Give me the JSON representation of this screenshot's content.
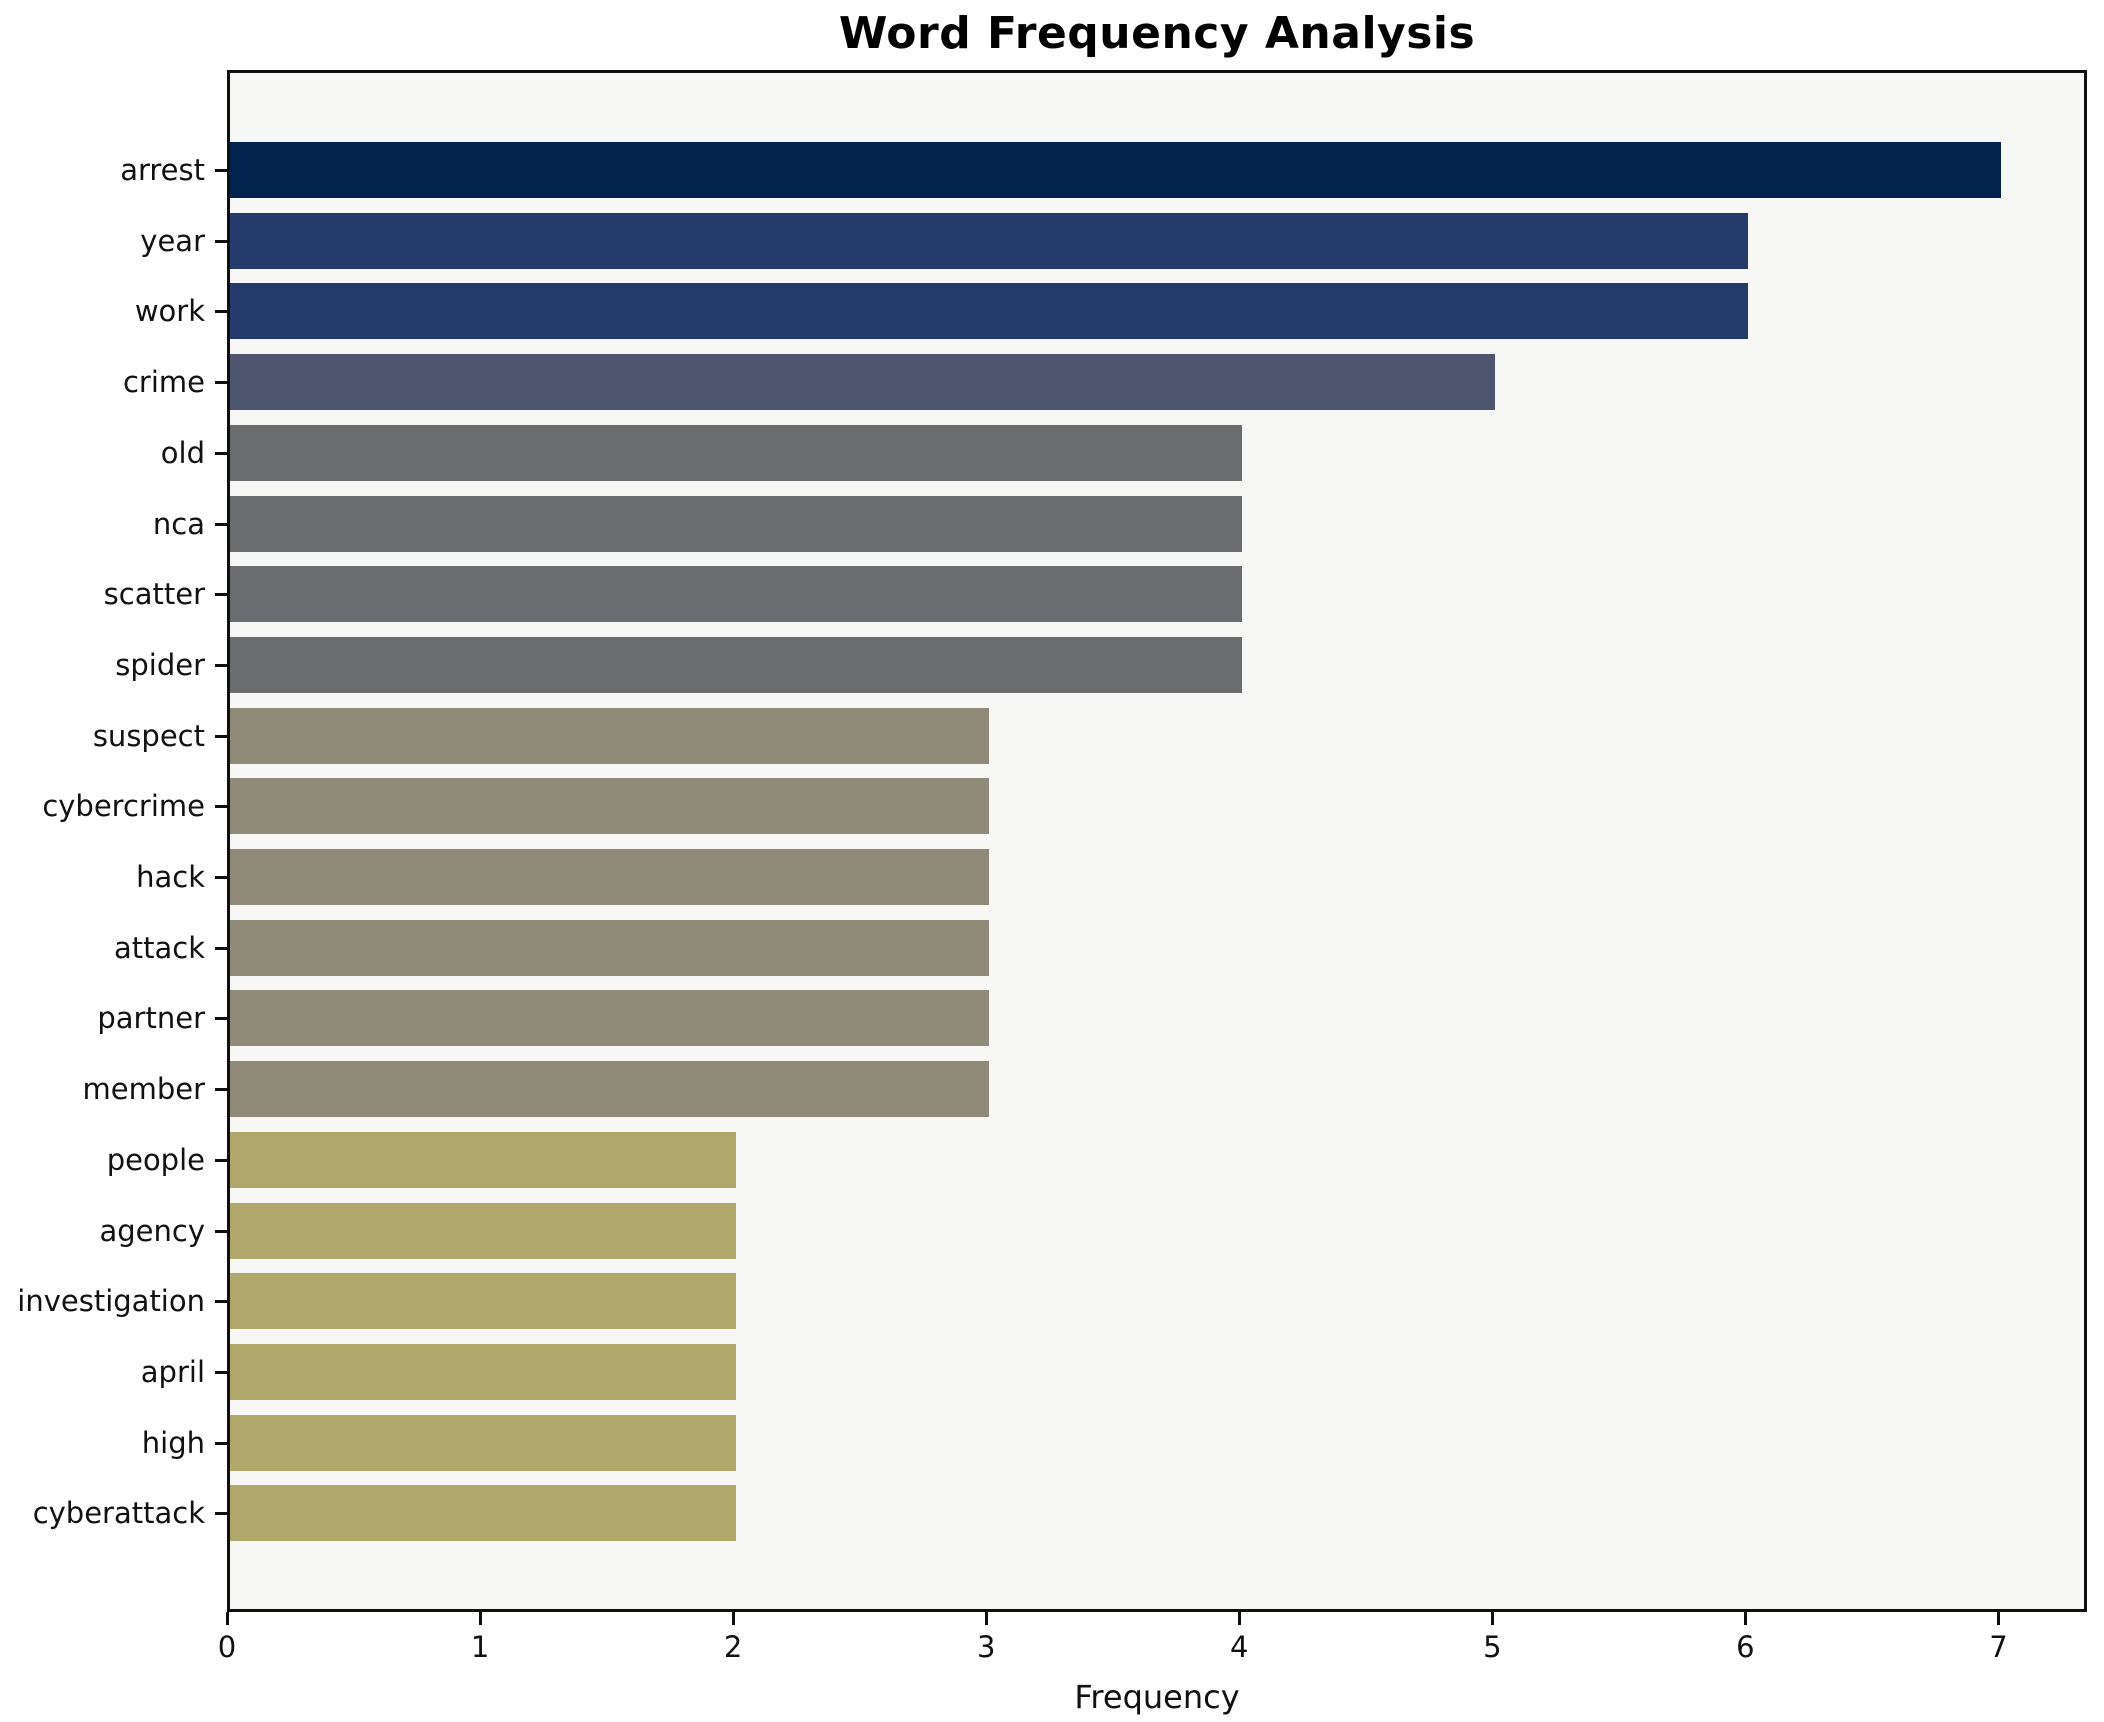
{
  "chart_data": {
    "type": "bar",
    "orientation": "horizontal",
    "title": "Word Frequency Analysis",
    "xlabel": "Frequency",
    "ylabel": "",
    "grid": false,
    "legend_position": "none",
    "xlim": [
      0,
      7.35
    ],
    "x_ticks": [
      0,
      1,
      2,
      3,
      4,
      5,
      6,
      7
    ],
    "categories": [
      "arrest",
      "year",
      "work",
      "crime",
      "old",
      "nca",
      "scatter",
      "spider",
      "suspect",
      "cybercrime",
      "hack",
      "attack",
      "partner",
      "member",
      "people",
      "agency",
      "investigation",
      "april",
      "high",
      "cyberattack"
    ],
    "values": [
      7,
      6,
      6,
      5,
      4,
      4,
      4,
      4,
      3,
      3,
      3,
      3,
      3,
      3,
      2,
      2,
      2,
      2,
      2,
      2
    ],
    "bar_colors": [
      "#01234e",
      "#253b6c",
      "#253b6c",
      "#4d556f",
      "#6b6c70",
      "#6b6c70",
      "#6b6c70",
      "#6b6c70",
      "#908a78",
      "#908a78",
      "#908a78",
      "#908a78",
      "#908a78",
      "#908a78",
      "#b0a76b",
      "#b0a76b",
      "#b0a76b",
      "#b0a76b",
      "#b0a76b",
      "#b0a76b"
    ],
    "colors": {
      "figure_background": "#ffffff",
      "plot_background": "#f7f7f5",
      "spine": "#0f0f0f",
      "text": "#111111"
    }
  }
}
